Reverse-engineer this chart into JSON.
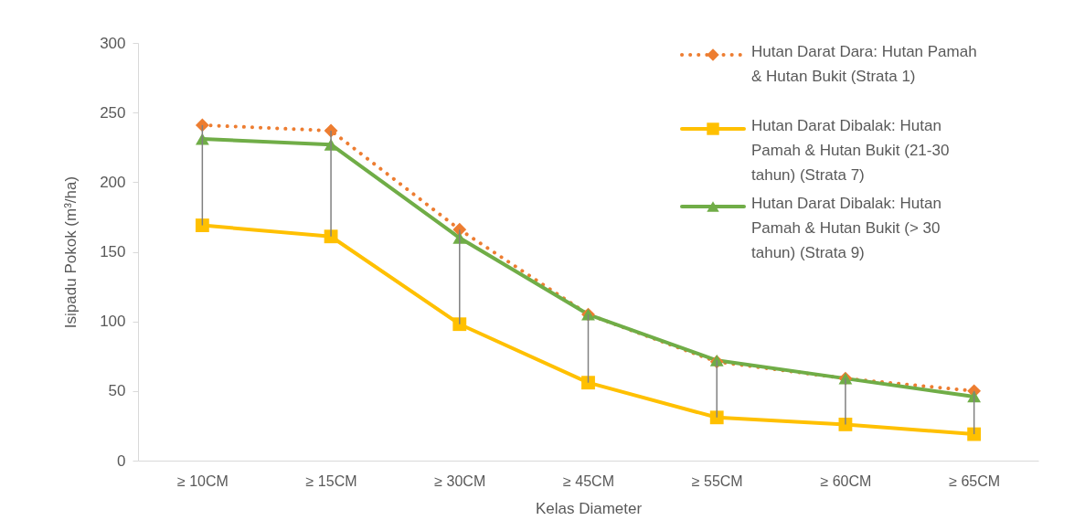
{
  "chart_data": {
    "type": "line",
    "xlabel": "Kelas Diameter",
    "ylabel": "Isipadu Pokok (m³/ha)",
    "categories": [
      "≥ 10CM",
      "≥ 15CM",
      "≥ 30CM",
      "≥ 45CM",
      "≥ 55CM",
      "≥ 60CM",
      "≥ 65CM"
    ],
    "ylim": [
      0,
      300
    ],
    "yticks": [
      0,
      50,
      100,
      150,
      200,
      250,
      300
    ],
    "grid": false,
    "legend": "top right",
    "series": [
      {
        "name": "Hutan Darat Dara: Hutan Pamah & Hutan Bukit (Strata 1)",
        "color": "#ed7d31",
        "marker": "diamond",
        "line_style": "dotted",
        "values": [
          241,
          237,
          166,
          105,
          71,
          59,
          50
        ],
        "errors": [
          [
            169,
            241
          ],
          [
            161,
            237
          ],
          [
            98,
            166
          ],
          [
            56,
            105
          ],
          [
            31,
            72
          ],
          [
            26,
            59
          ],
          [
            19,
            50
          ]
        ]
      },
      {
        "name": "Hutan Darat Dibalak: Hutan Pamah & Hutan Bukit  (21-30 tahun) (Strata 7)",
        "color": "#ffc000",
        "marker": "square",
        "line_style": "solid",
        "values": [
          169,
          161,
          98,
          56,
          31,
          26,
          19
        ]
      },
      {
        "name": "Hutan Darat Dibalak: Hutan Pamah & Hutan Bukit  (> 30 tahun) (Strata 9)",
        "color": "#70ad47",
        "marker": "triangle",
        "line_style": "solid",
        "values": [
          231,
          227,
          160,
          105,
          72,
          59,
          46
        ]
      }
    ]
  }
}
